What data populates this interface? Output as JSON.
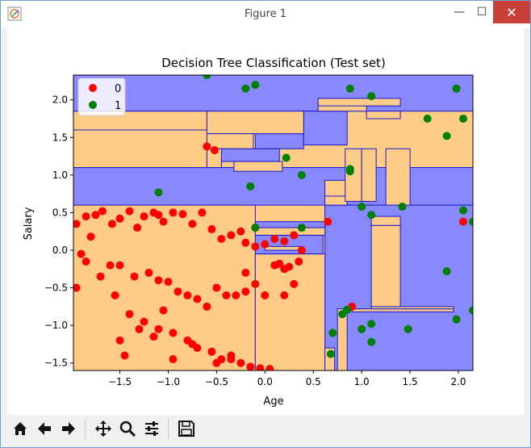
{
  "window": {
    "title": "Figure 1",
    "minimize_label": "—",
    "maximize_label": "☐",
    "close_label": "✕"
  },
  "toolbar": {
    "buttons": [
      {
        "name": "home-button",
        "icon": "home-icon"
      },
      {
        "name": "back-button",
        "icon": "arrow-left-icon"
      },
      {
        "name": "forward-button",
        "icon": "arrow-right-icon"
      },
      {
        "name": "pan-button",
        "icon": "move-icon"
      },
      {
        "name": "zoom-button",
        "icon": "magnifier-icon"
      },
      {
        "name": "configure-subplots-button",
        "icon": "sliders-icon"
      },
      {
        "name": "save-button",
        "icon": "floppy-disk-icon"
      }
    ]
  },
  "chart_data": {
    "type": "scatter",
    "title": "Decision Tree Classification (Test set)",
    "xlabel": "Age",
    "ylabel": "Salary",
    "xlim": [
      -1.98,
      2.15
    ],
    "ylim": [
      -1.6,
      2.33
    ],
    "xticks": [
      -1.5,
      -1.0,
      -0.5,
      0.0,
      0.5,
      1.0,
      1.5,
      2.0
    ],
    "xtick_labels": [
      "−1.5",
      "−1.0",
      "−0.5",
      "0.0",
      "0.5",
      "1.0",
      "1.5",
      "2.0"
    ],
    "yticks": [
      -1.5,
      -1.0,
      -0.5,
      0.0,
      0.5,
      1.0,
      1.5,
      2.0
    ],
    "ytick_labels": [
      "−1.5",
      "−1.0",
      "−0.5",
      "0.0",
      "0.5",
      "1.0",
      "1.5",
      "2.0"
    ],
    "legend_position": "top-left",
    "background_colors": {
      "class_0_region": "#ffcc88",
      "class_1_region": "#8888ff",
      "boundary": "#1a1acc"
    },
    "region_class_1_boxes": [
      [
        -1.98,
        2.15,
        1.85,
        2.33
      ],
      [
        -1.98,
        2.15,
        0.6,
        1.1
      ],
      [
        0.62,
        2.15,
        -1.6,
        0.6
      ],
      [
        -0.1,
        0.6,
        -0.05,
        0.2
      ],
      [
        -0.1,
        0.62,
        0.3,
        0.38
      ],
      [
        -0.65,
        -0.45,
        1.1,
        1.35
      ],
      [
        -0.65,
        0.15,
        1.18,
        1.35
      ],
      [
        -0.1,
        0.4,
        1.35,
        1.55
      ],
      [
        0.4,
        0.85,
        1.4,
        1.85
      ]
    ],
    "region_class_0_boxes": [
      [
        -1.98,
        -0.6,
        1.1,
        1.85
      ],
      [
        -1.98,
        -0.6,
        1.6,
        1.85
      ],
      [
        -0.6,
        0.4,
        1.55,
        1.85
      ],
      [
        -0.6,
        -0.12,
        1.35,
        1.55
      ],
      [
        -0.6,
        -0.45,
        1.1,
        1.35
      ],
      [
        -0.45,
        -0.5,
        1.1,
        1.35
      ],
      [
        -0.45,
        -0.45,
        1.1,
        1.1
      ],
      [
        -0.32,
        0.18,
        1.05,
        1.18
      ],
      [
        -1.98,
        -0.1,
        -1.6,
        0.6
      ],
      [
        -0.1,
        0.62,
        -1.6,
        -0.05
      ],
      [
        -0.1,
        0.62,
        0.2,
        0.3
      ],
      [
        0.0,
        0.38,
        0.0,
        0.05
      ],
      [
        0.62,
        0.85,
        0.6,
        0.93
      ],
      [
        0.62,
        0.72,
        -1.6,
        -1.3
      ],
      [
        0.72,
        0.8,
        -1.3,
        -1.3
      ],
      [
        0.75,
        0.85,
        -1.6,
        -0.78
      ],
      [
        0.62,
        0.7,
        0.6,
        0.63
      ],
      [
        0.62,
        0.85,
        0.6,
        0.72
      ],
      [
        0.9,
        1.95,
        -0.82,
        -0.78
      ],
      [
        1.1,
        1.95,
        -0.78,
        -0.75
      ],
      [
        1.1,
        1.4,
        -0.75,
        0.33
      ],
      [
        1.1,
        1.4,
        0.33,
        0.45
      ],
      [
        1.25,
        1.5,
        0.6,
        1.35
      ],
      [
        0.83,
        1.0,
        0.65,
        1.35
      ],
      [
        1.0,
        1.15,
        0.65,
        1.35
      ],
      [
        0.55,
        1.05,
        1.85,
        2.02
      ],
      [
        0.55,
        1.4,
        1.92,
        2.02
      ],
      [
        1.05,
        1.4,
        1.75,
        1.85
      ]
    ],
    "series": [
      {
        "name": "0",
        "color": "#ff0000",
        "x": [
          -1.95,
          -1.85,
          -1.75,
          -1.68,
          -1.58,
          -1.5,
          -1.4,
          -1.32,
          -1.25,
          -1.15,
          -1.1,
          -1.05,
          -0.95,
          -0.85,
          -0.75,
          -0.65,
          -0.55,
          -0.45,
          -0.35,
          -0.25,
          -0.2,
          -0.1,
          0.0,
          0.1,
          0.2,
          0.3,
          0.38,
          0.65,
          -1.9,
          -1.8,
          -1.6,
          -1.5,
          -1.35,
          -1.2,
          -1.1,
          -1.0,
          -0.9,
          -0.8,
          -0.7,
          -0.6,
          -0.5,
          -0.4,
          -0.3,
          -0.2,
          -0.1,
          0.0,
          0.1,
          0.2,
          0.3,
          0.38,
          -1.95,
          -1.85,
          -1.7,
          -1.55,
          -1.4,
          -1.25,
          -1.1,
          -0.95,
          -0.8,
          -0.7,
          -0.55,
          -0.45,
          -0.35,
          -0.25,
          -0.15,
          -0.05,
          0.05,
          0.15,
          0.25,
          0.35,
          -1.5,
          -1.3,
          -1.15,
          -0.95,
          -0.75,
          -0.5,
          -0.35,
          -1.45,
          -1.05,
          -0.2,
          0.2,
          0.9,
          2.05,
          -0.6,
          -0.52,
          -0.1
        ],
        "y": [
          0.35,
          0.45,
          0.47,
          0.52,
          0.35,
          0.42,
          0.52,
          0.3,
          0.45,
          0.5,
          0.47,
          0.38,
          0.5,
          0.48,
          0.35,
          0.5,
          0.28,
          0.15,
          0.2,
          0.25,
          0.1,
          0.05,
          0.08,
          0.15,
          0.12,
          0.2,
          0.3,
          0.38,
          -0.05,
          0.18,
          -0.2,
          -0.2,
          -0.35,
          -0.3,
          -0.4,
          -0.42,
          -0.55,
          -0.6,
          -0.65,
          -0.75,
          -0.5,
          -0.6,
          -0.6,
          -0.55,
          -0.45,
          -0.6,
          -0.2,
          -0.25,
          -0.45,
          0.0,
          -0.5,
          -0.15,
          -0.35,
          -0.6,
          -0.85,
          -0.95,
          -1.05,
          -1.1,
          -1.2,
          -1.3,
          -1.35,
          -1.45,
          -1.45,
          -1.5,
          -1.55,
          -1.57,
          -1.58,
          -0.18,
          -0.22,
          -0.15,
          -1.2,
          -1.05,
          -1.15,
          -1.45,
          -1.25,
          -1.5,
          -1.4,
          -1.4,
          -0.8,
          -0.3,
          -0.6,
          -0.75,
          0.38,
          1.38,
          1.33,
          0.3
        ]
      },
      {
        "name": "1",
        "color": "#008000",
        "x": [
          -0.6,
          -0.2,
          -0.1,
          0.88,
          1.1,
          1.68,
          1.98,
          2.05,
          1.88,
          0.22,
          0.38,
          0.88,
          0.88,
          1.0,
          1.1,
          1.42,
          2.05,
          2.15,
          -0.15,
          -1.1,
          -0.1,
          0.38,
          1.88,
          1.98,
          2.15,
          0.85,
          1.0,
          1.1,
          1.48,
          0.7,
          0.8,
          0.68,
          1.1
        ],
        "y": [
          2.33,
          2.15,
          2.2,
          2.15,
          2.05,
          1.75,
          2.15,
          1.75,
          1.52,
          1.23,
          1.0,
          1.08,
          1.05,
          0.58,
          0.47,
          0.58,
          0.53,
          0.38,
          0.85,
          0.77,
          0.3,
          0.3,
          -0.28,
          -0.92,
          -0.8,
          -0.79,
          -1.05,
          -0.98,
          -1.05,
          -1.1,
          -0.85,
          -1.38,
          -1.22
        ]
      }
    ]
  }
}
